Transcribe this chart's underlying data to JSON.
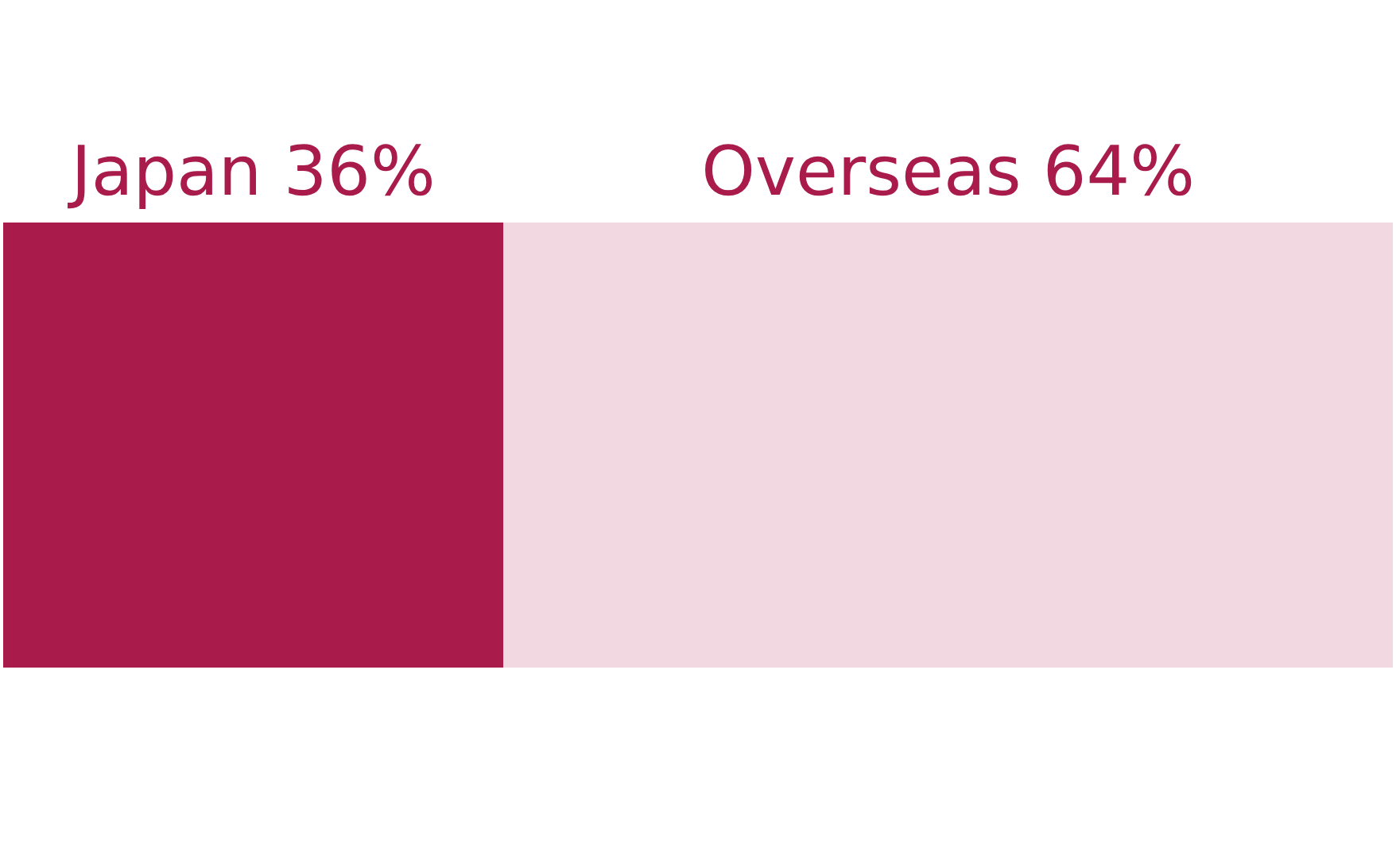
{
  "chart_data": {
    "type": "bar",
    "orientation": "horizontal",
    "stacked": true,
    "categories": [
      null
    ],
    "series": [
      {
        "color": "#a81b4a",
        "values": [
          36
        ],
        "value_labels": [
          "Japan 36%"
        ]
      },
      {
        "color": "#f2d8e1",
        "values": [
          64
        ],
        "value_labels": [
          "Overseas 64%"
        ]
      }
    ],
    "xlim": [
      0,
      100
    ],
    "tick_labels": false
  }
}
